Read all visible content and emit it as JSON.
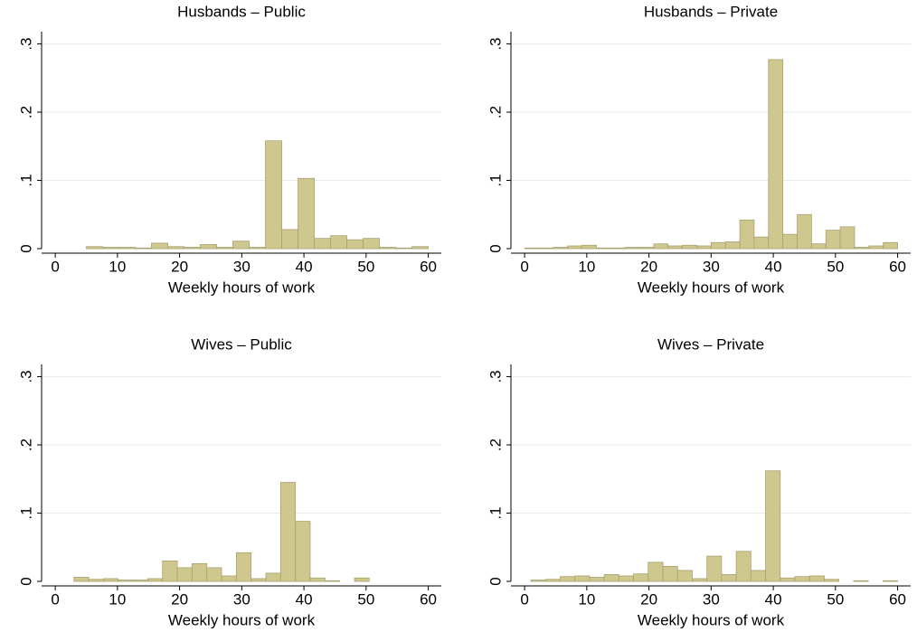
{
  "chart_data": [
    {
      "type": "histogram",
      "title": "Husbands – Public",
      "x_label": "Weekly hours of work",
      "color": "#cfc88e",
      "edge_color": "#a9a170",
      "grid": true,
      "bins": [
        5,
        7.62,
        10.24,
        12.86,
        15.48,
        18.1,
        20.71,
        23.33,
        25.95,
        28.57,
        31.19,
        33.81,
        36.43,
        39.05,
        41.67,
        44.29,
        46.9,
        49.52,
        52.14,
        54.76,
        57.38,
        60
      ],
      "values": [
        0.003,
        0.002,
        0.002,
        0.001,
        0.008,
        0.003,
        0.002,
        0.006,
        0.002,
        0.011,
        0.002,
        0.158,
        0.028,
        0.103,
        0.015,
        0.019,
        0.013,
        0.015,
        0.002,
        0.001,
        0.003
      ],
      "xlim": [
        -2.2,
        62.1
      ],
      "ylim": [
        0,
        0.318
      ],
      "xticks": [
        0,
        10,
        20,
        30,
        40,
        50,
        60
      ],
      "yticks": [
        0,
        {
          "value": 0.1,
          "label": ".1"
        },
        {
          "value": 0.2,
          "label": ".2"
        },
        {
          "value": 0.3,
          "label": ".3"
        }
      ]
    },
    {
      "type": "histogram",
      "title": "Husbands – Private",
      "x_label": "Weekly hours of work",
      "color": "#cfc88e",
      "edge_color": "#a9a170",
      "grid": true,
      "bins": [
        0,
        2.31,
        4.62,
        6.92,
        9.23,
        11.54,
        13.85,
        16.15,
        18.46,
        20.77,
        23.08,
        25.38,
        27.69,
        30,
        32.31,
        34.62,
        36.92,
        39.23,
        41.54,
        43.85,
        46.15,
        48.46,
        50.77,
        53.08,
        55.38,
        57.69,
        60
      ],
      "values": [
        0.001,
        0.001,
        0.002,
        0.004,
        0.005,
        0.001,
        0.001,
        0.002,
        0.002,
        0.007,
        0.004,
        0.005,
        0.004,
        0.009,
        0.01,
        0.042,
        0.017,
        0.277,
        0.021,
        0.05,
        0.007,
        0.027,
        0.032,
        0.002,
        0.004,
        0.009
      ],
      "xlim": [
        -2.2,
        62.1
      ],
      "ylim": [
        0,
        0.318
      ],
      "xticks": [
        0,
        10,
        20,
        30,
        40,
        50,
        60
      ],
      "yticks": [
        0,
        {
          "value": 0.1,
          "label": ".1"
        },
        {
          "value": 0.2,
          "label": ".2"
        },
        {
          "value": 0.3,
          "label": ".3"
        }
      ]
    },
    {
      "type": "histogram",
      "title": "Wives – Public",
      "x_label": "Weekly hours of work",
      "color": "#cfc88e",
      "edge_color": "#a9a170",
      "grid": true,
      "bins": [
        3,
        5.38,
        7.75,
        10.13,
        12.5,
        14.88,
        17.25,
        19.63,
        22,
        24.38,
        26.75,
        29.13,
        31.5,
        33.88,
        36.25,
        38.63,
        41,
        43.38,
        45.75,
        48.13,
        50.5,
        52.88,
        55.25,
        57.63,
        60
      ],
      "values": [
        0.006,
        0.003,
        0.004,
        0.002,
        0.002,
        0.004,
        0.03,
        0.02,
        0.026,
        0.02,
        0.008,
        0.042,
        0.004,
        0.012,
        0.145,
        0.088,
        0.005,
        0.001,
        0,
        0.005,
        0,
        0,
        0,
        0
      ],
      "xlim": [
        -2.2,
        62.1
      ],
      "ylim": [
        0,
        0.318
      ],
      "xticks": [
        0,
        10,
        20,
        30,
        40,
        50,
        60
      ],
      "yticks": [
        0,
        {
          "value": 0.1,
          "label": ".1"
        },
        {
          "value": 0.2,
          "label": ".2"
        },
        {
          "value": 0.3,
          "label": ".3"
        }
      ]
    },
    {
      "type": "histogram",
      "title": "Wives – Private",
      "x_label": "Weekly hours of work",
      "color": "#cfc88e",
      "edge_color": "#a9a170",
      "grid": true,
      "bins": [
        1,
        3.36,
        5.72,
        8.08,
        10.44,
        12.8,
        15.16,
        17.52,
        19.88,
        22.24,
        24.6,
        26.96,
        29.32,
        31.68,
        34.04,
        36.4,
        38.76,
        41.12,
        43.48,
        45.84,
        48.2,
        50.56,
        52.92,
        55.28,
        57.64,
        60
      ],
      "values": [
        0.002,
        0.003,
        0.007,
        0.008,
        0.006,
        0.01,
        0.008,
        0.011,
        0.028,
        0.022,
        0.016,
        0.004,
        0.037,
        0.01,
        0.044,
        0.016,
        0.162,
        0.005,
        0.007,
        0.008,
        0.003,
        0,
        0.001,
        0,
        0.001
      ],
      "xlim": [
        -2.2,
        62.1
      ],
      "ylim": [
        0,
        0.318
      ],
      "xticks": [
        0,
        10,
        20,
        30,
        40,
        50,
        60
      ],
      "yticks": [
        0,
        {
          "value": 0.1,
          "label": ".1"
        },
        {
          "value": 0.2,
          "label": ".2"
        },
        {
          "value": 0.3,
          "label": ".3"
        }
      ]
    }
  ]
}
